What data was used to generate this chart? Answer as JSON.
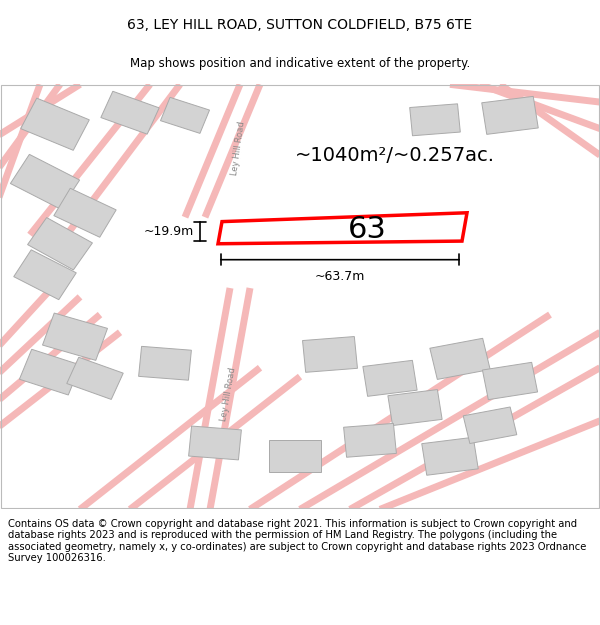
{
  "title": "63, LEY HILL ROAD, SUTTON COLDFIELD, B75 6TE",
  "subtitle": "Map shows position and indicative extent of the property.",
  "footer": "Contains OS data © Crown copyright and database right 2021. This information is subject to Crown copyright and database rights 2023 and is reproduced with the permission of HM Land Registry. The polygons (including the associated geometry, namely x, y co-ordinates) are subject to Crown copyright and database rights 2023 Ordnance Survey 100026316.",
  "area_text": "~1040m²/~0.257ac.",
  "number_label": "63",
  "dim_width": "~63.7m",
  "dim_height": "~19.9m",
  "road_label_upper": "Ley Hill Road",
  "road_label_lower": "Ley Hill Road",
  "map_bg": "#ffffff",
  "plot_fill": "#ffffff",
  "plot_edge": "#ff0000",
  "building_fill": "#d3d3d3",
  "building_edge": "#aaaaaa",
  "road_color": "#f5b8b8",
  "title_fontsize": 10,
  "subtitle_fontsize": 8.5,
  "footer_fontsize": 7.2
}
